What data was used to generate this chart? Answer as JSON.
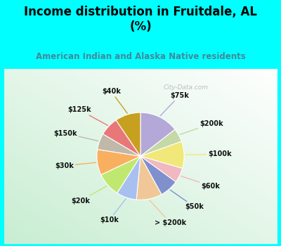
{
  "title": "Income distribution in Fruitdale, AL\n(%)",
  "subtitle": "American Indian and Alaska Native residents",
  "title_color": "#000000",
  "subtitle_color": "#448899",
  "bg_cyan": "#00ffff",
  "bg_chart_color1": "#e8f5ee",
  "bg_chart_color2": "#c8eedd",
  "watermark": "City-Data.com",
  "labels": [
    "$75k",
    "$200k",
    "$100k",
    "$60k",
    "$50k",
    "> $200k",
    "$10k",
    "$20k",
    "$30k",
    "$150k",
    "$125k",
    "$40k"
  ],
  "values": [
    14.5,
    5.0,
    10.0,
    5.5,
    7.0,
    9.5,
    7.5,
    9.0,
    9.5,
    6.0,
    7.0,
    9.5
  ],
  "colors": [
    "#b3a8d8",
    "#c5d8a8",
    "#f0e878",
    "#f0b8c0",
    "#8090cc",
    "#f0c898",
    "#a8c0f0",
    "#c0e870",
    "#f8b060",
    "#c0b8a8",
    "#e87878",
    "#c8a020"
  ],
  "figsize": [
    4.0,
    3.5
  ],
  "dpi": 100,
  "title_fontsize": 12,
  "subtitle_fontsize": 8.5,
  "label_fontsize": 7
}
